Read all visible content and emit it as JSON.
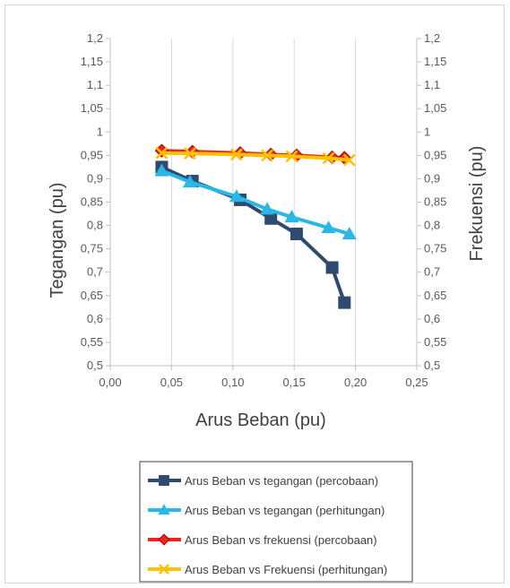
{
  "chart_data": {
    "type": "line",
    "title": "",
    "xlabel": "Arus Beban (pu)",
    "ylabel": "Tegangan  (pu)",
    "y2label": "Frekuensi (pu)",
    "xlim": [
      0,
      0.25
    ],
    "ylim": [
      0.5,
      1.2
    ],
    "y2lim": [
      0.5,
      1.2
    ],
    "x_ticks": [
      "0,00",
      "0,05",
      "0,10",
      "0,15",
      "0,20",
      "0,25"
    ],
    "y_ticks": [
      "0,5",
      "0,55",
      "0,6",
      "0,65",
      "0,7",
      "0,75",
      "0,8",
      "0,85",
      "0,9",
      "0,95",
      "1",
      "1,05",
      "1,1",
      "1,15",
      "1,2"
    ],
    "y2_ticks": [
      "0,5",
      "0,55",
      "0,6",
      "0,65",
      "0,7",
      "0,75",
      "0,8",
      "0,85",
      "0,9",
      "0,95",
      "1",
      "1,05",
      "1,1",
      "1,15",
      "1,2"
    ],
    "grid": "vertical",
    "legend_position": "bottom",
    "series": [
      {
        "name": "Arus Beban vs tegangan (percobaan)",
        "color": "#2e4a6e",
        "marker": "square",
        "x": [
          0.042,
          0.067,
          0.106,
          0.131,
          0.152,
          0.181,
          0.191
        ],
        "y": [
          0.925,
          0.895,
          0.855,
          0.815,
          0.782,
          0.71,
          0.635
        ]
      },
      {
        "name": "Arus Beban vs tegangan (perhitungan)",
        "color": "#2ab7e8",
        "marker": "triangle",
        "x": [
          0.042,
          0.065,
          0.103,
          0.128,
          0.148,
          0.178,
          0.195
        ],
        "y": [
          0.917,
          0.893,
          0.862,
          0.835,
          0.818,
          0.795,
          0.782
        ]
      },
      {
        "name": "Arus Beban vs frekuensi (percobaan)",
        "color": "#e8261c",
        "marker": "diamond",
        "x": [
          0.042,
          0.067,
          0.106,
          0.131,
          0.152,
          0.181,
          0.191
        ],
        "y": [
          0.96,
          0.958,
          0.955,
          0.952,
          0.95,
          0.946,
          0.945
        ]
      },
      {
        "name": "Arus Beban vs Frekuensi (perhitungan)",
        "color": "#ffc000",
        "marker": "x",
        "x": [
          0.042,
          0.065,
          0.103,
          0.128,
          0.148,
          0.178,
          0.195
        ],
        "y": [
          0.955,
          0.954,
          0.952,
          0.95,
          0.948,
          0.944,
          0.94
        ]
      }
    ]
  }
}
